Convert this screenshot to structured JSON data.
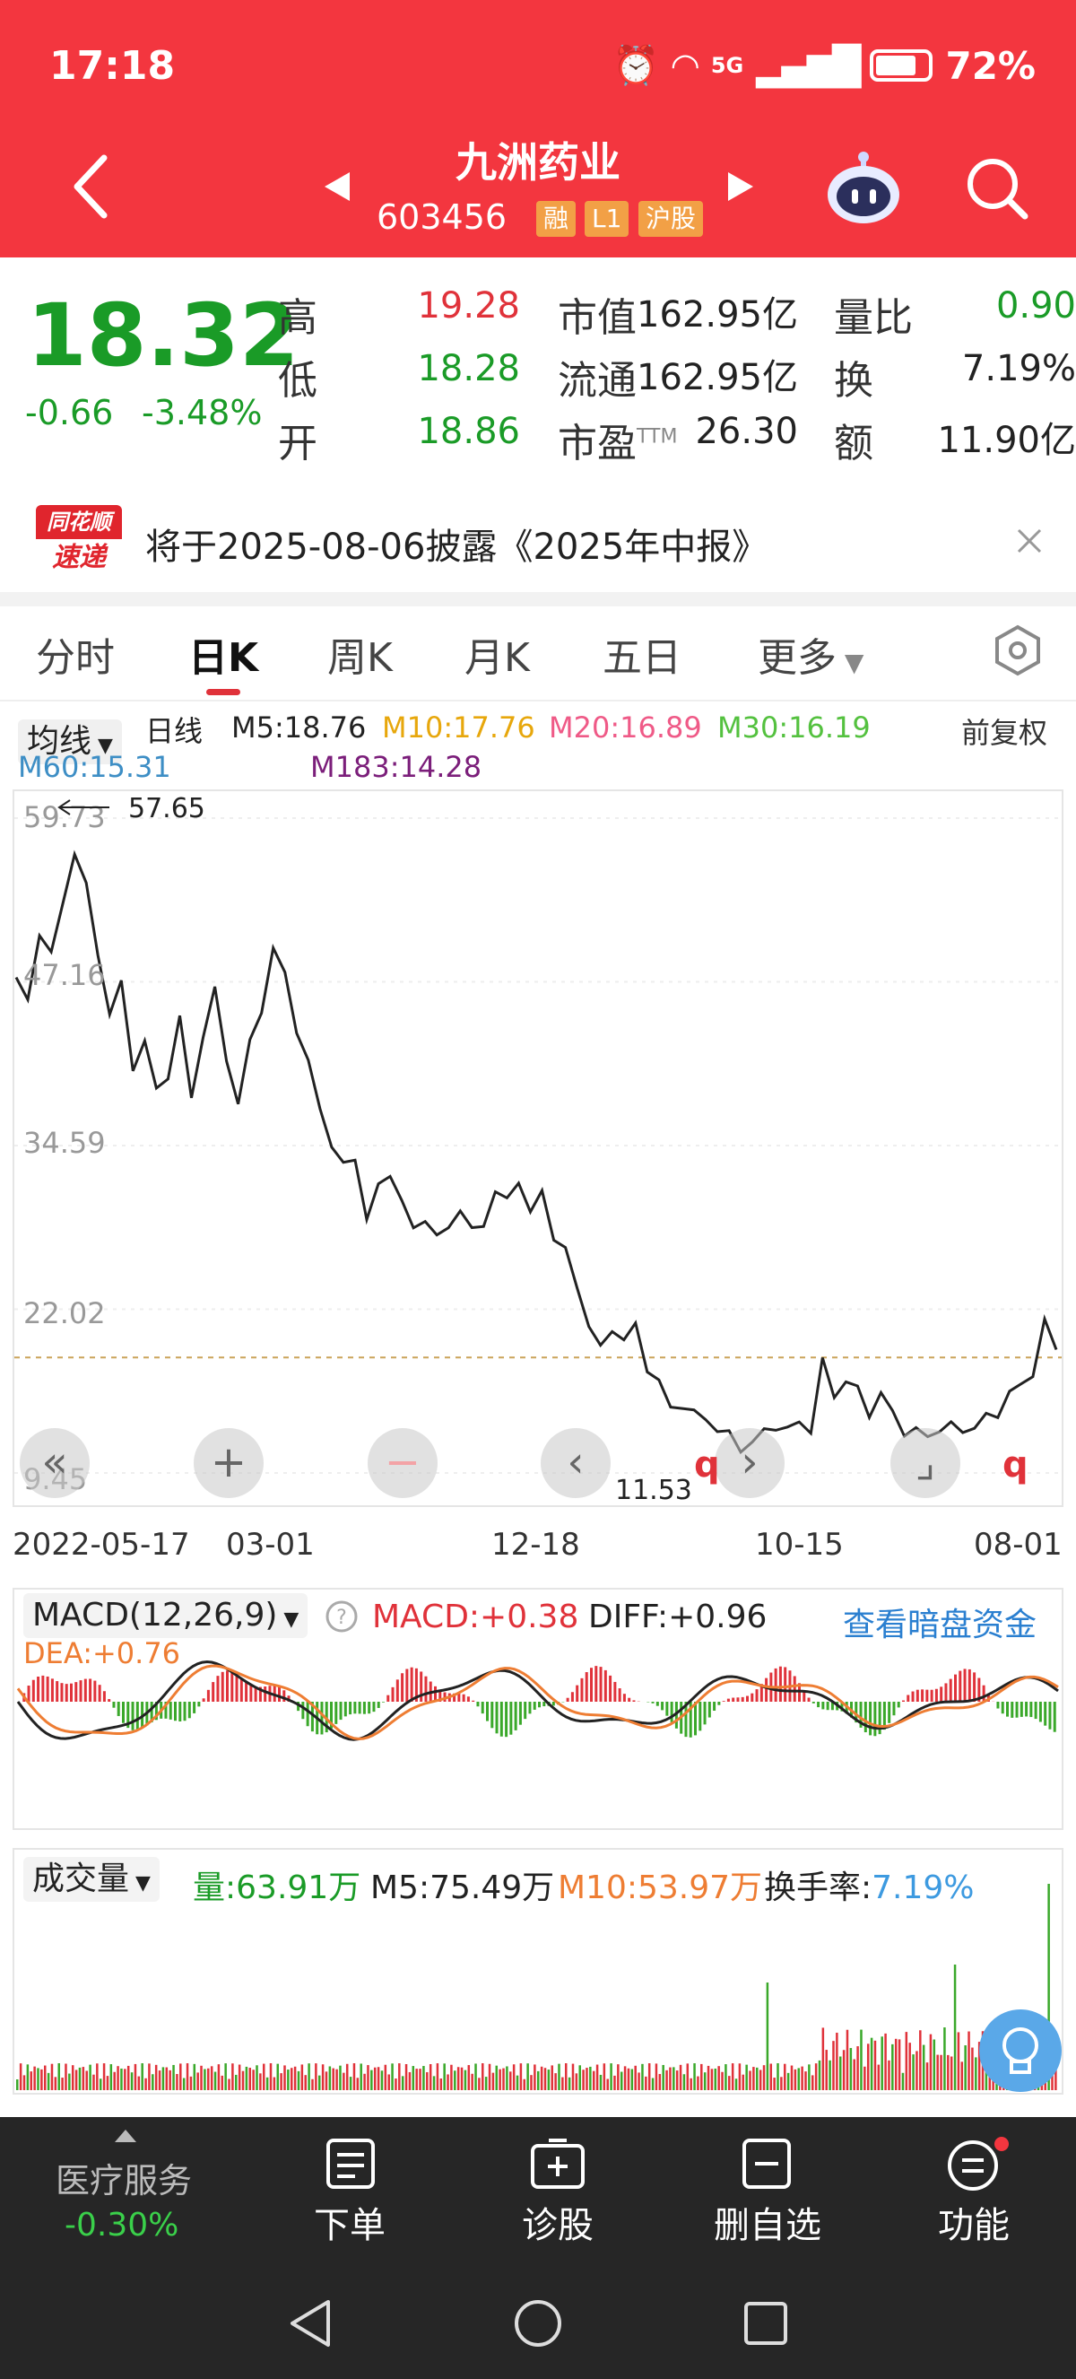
{
  "status": {
    "time": "17:18",
    "network": "5G",
    "battery": "72%"
  },
  "header": {
    "name": "九洲药业",
    "code": "603456",
    "tags": [
      "融",
      "L1",
      "沪股"
    ]
  },
  "quote": {
    "price": "18.32",
    "change": "-0.66",
    "change_pct": "-3.48%",
    "labels": {
      "high": "高",
      "low": "低",
      "open": "开",
      "mkt_cap": "市值",
      "float": "流通",
      "pe": "市盈",
      "pe_sup": "TTM",
      "vol_ratio": "量比",
      "turnover": "换",
      "amount": "额"
    },
    "high": "19.28",
    "low": "18.28",
    "open": "18.86",
    "mkt_cap": "162.95亿",
    "float": "162.95亿",
    "pe": "26.30",
    "vol_ratio": "0.90",
    "turnover": "7.19%",
    "amount": "11.90亿"
  },
  "news": {
    "logo_top": "同花顺",
    "logo_bottom": "速递",
    "text": "将于2025-08-06披露《2025年中报》"
  },
  "tabs": [
    "分时",
    "日K",
    "周K",
    "月K",
    "五日",
    "更多"
  ],
  "ma": {
    "selector": "均线",
    "period": "日线",
    "items": [
      {
        "label": "M5:18.76",
        "color": "#222222"
      },
      {
        "label": "M10:17.76",
        "color": "#e7a70c"
      },
      {
        "label": "M20:16.89",
        "color": "#ef5a87"
      },
      {
        "label": "M30:16.19",
        "color": "#54c13f"
      },
      {
        "label": "M60:15.31",
        "color": "#3d8ec5"
      },
      {
        "label": "M183:14.28",
        "color": "#7b1e7a"
      }
    ],
    "adjust": "前复权"
  },
  "chart_data": {
    "type": "line",
    "title": "",
    "y_ticks": [
      "59.73",
      "47.16",
      "34.59",
      "22.02",
      "9.45"
    ],
    "ylim": [
      9.45,
      59.73
    ],
    "x_ticks": [
      "2022-05-17",
      "03-01",
      "12-18",
      "10-15",
      "08-01"
    ],
    "max_label": "57.65",
    "min_label": "11.53",
    "series": [
      {
        "values": [
          47.5,
          45.2,
          51.5,
          49.0,
          53.0,
          57.65,
          54.0,
          49.5,
          45.0,
          46.5,
          41.0,
          42.5,
          38.5,
          40.5,
          44.0,
          38.2,
          43.5,
          46.0,
          41.5,
          38.0,
          42.0,
          45.5,
          49.5,
          47.5,
          44.0,
          40.5,
          37.5,
          35.0,
          32.5,
          34.0,
          29.0,
          31.0,
          33.0,
          30.0,
          28.0,
          29.5,
          27.0,
          28.5,
          30.0,
          27.5,
          29.0,
          31.0,
          30.0,
          32.5,
          29.0,
          31.0,
          28.0,
          26.0,
          24.0,
          21.0,
          18.5,
          21.0,
          19.5,
          20.5,
          18.0,
          16.0,
          14.5,
          15.0,
          13.5,
          14.0,
          12.8,
          12.0,
          11.8,
          11.53,
          12.5,
          13.5,
          12.3,
          13.5,
          13.0,
          17.5,
          15.8,
          16.5,
          15.5,
          14.5,
          15.2,
          14.0,
          13.0,
          12.2,
          12.5,
          13.0,
          12.6,
          13.2,
          12.8,
          13.5,
          14.5,
          15.2,
          16.2,
          17.5,
          20.5,
          19.3
        ]
      }
    ],
    "dashed_level": 18.32
  },
  "macd": {
    "label": "MACD(12,26,9)",
    "macd": "MACD:+0.38",
    "diff": "DIFF:+0.96",
    "dea": "DEA:+0.76",
    "link": "查看暗盘资金"
  },
  "volume": {
    "label": "成交量",
    "vol": "量:63.91万",
    "m5": "M5:75.49万",
    "m10": "M10:53.97万",
    "turnover_label": "换手率:",
    "turnover": "7.19%"
  },
  "bottom": {
    "sector": "医疗服务",
    "sector_chg": "-0.30%",
    "items": [
      "下单",
      "诊股",
      "删自选",
      "功能"
    ]
  }
}
